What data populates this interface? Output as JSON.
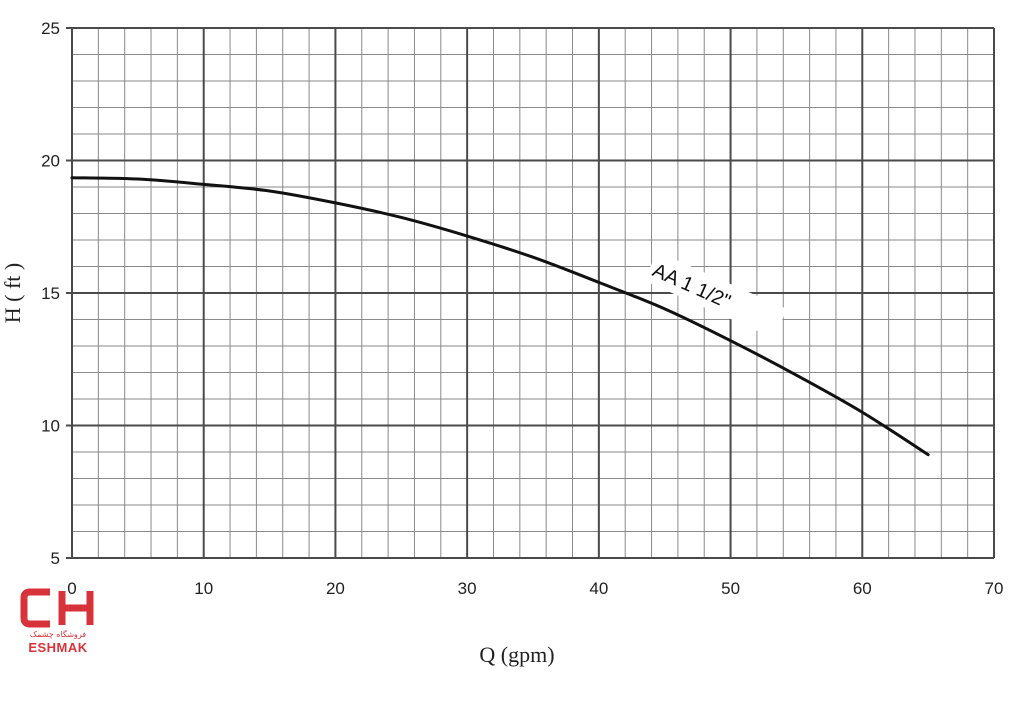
{
  "chart_data": {
    "type": "line",
    "xlabel": "Q (gpm)",
    "ylabel": "H ( ft )",
    "xlim": [
      0,
      70
    ],
    "ylim": [
      5,
      25
    ],
    "x_ticks": [
      "0",
      "10",
      "20",
      "30",
      "40",
      "50",
      "60",
      "70"
    ],
    "y_ticks": [
      "5",
      "10",
      "15",
      "20",
      "25"
    ],
    "grid": true,
    "series": [
      {
        "name": "AA 1 1/2\"",
        "color": "#111111",
        "x": [
          0,
          5,
          10,
          15,
          20,
          25,
          30,
          35,
          40,
          45,
          50,
          55,
          60,
          65
        ],
        "y": [
          19.35,
          19.3,
          19.1,
          18.85,
          18.4,
          17.85,
          17.15,
          16.35,
          15.4,
          14.4,
          13.2,
          11.9,
          10.5,
          8.9
        ]
      }
    ]
  },
  "logo": {
    "mark": "CH",
    "subtitle": "فروشگاه چشمک",
    "name": "ESHMAK",
    "color": "#d8323a"
  }
}
